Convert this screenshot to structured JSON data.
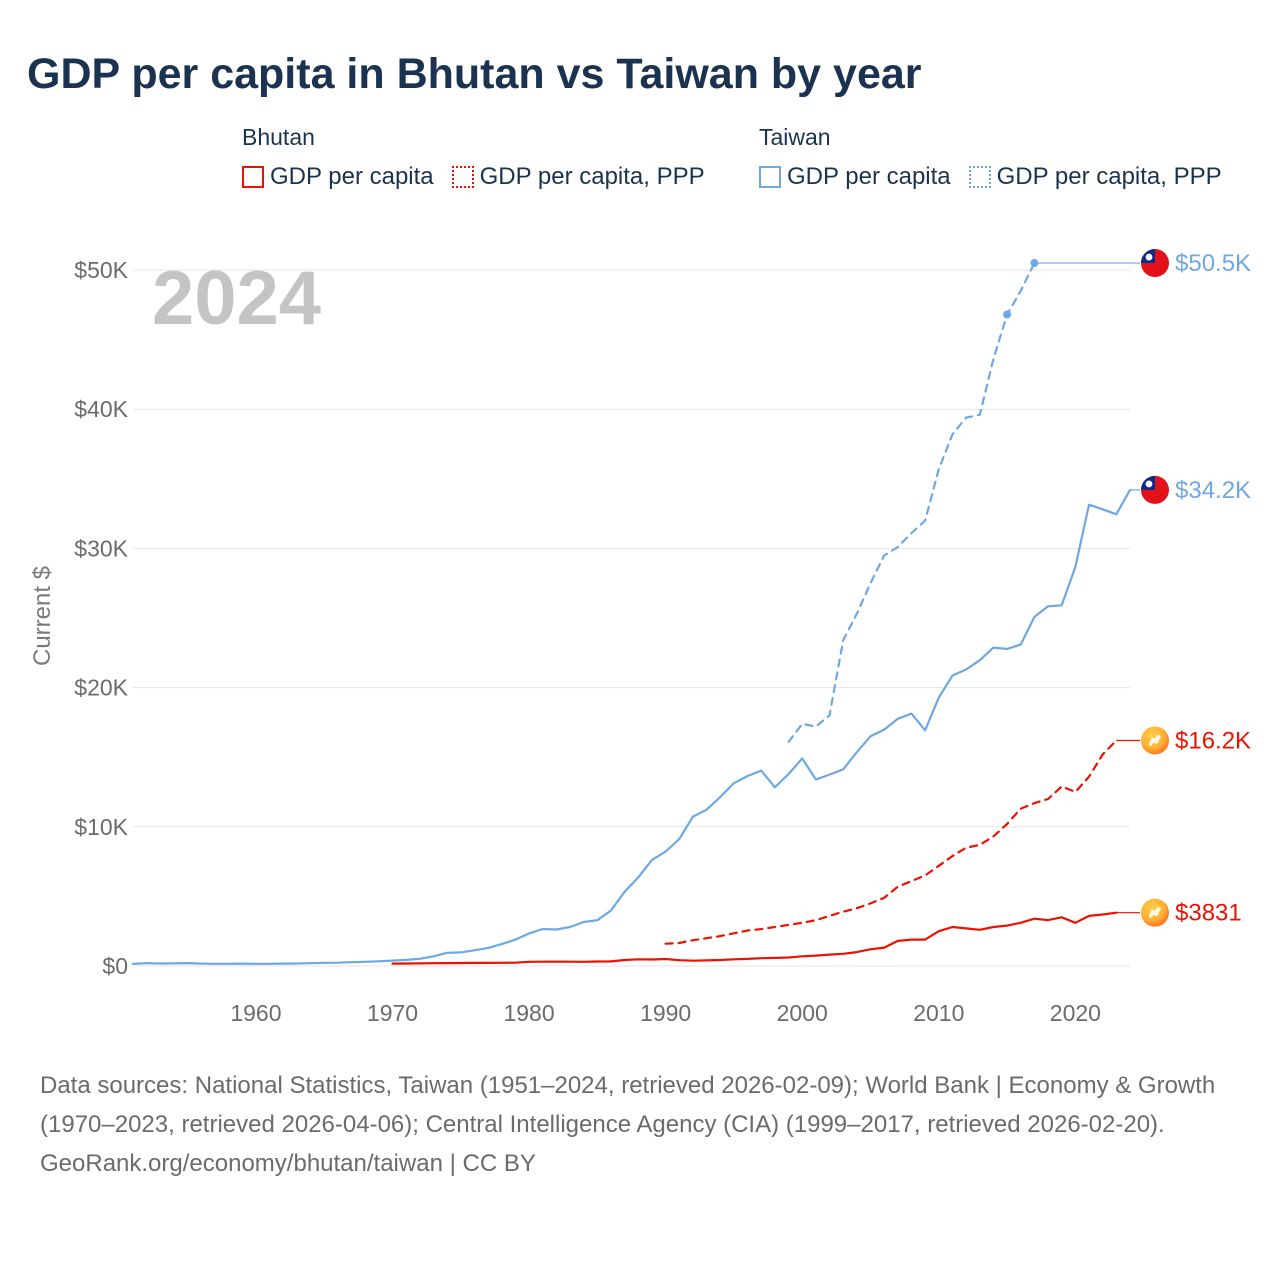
{
  "title": "GDP per capita in Bhutan vs Taiwan by year",
  "legend": {
    "groups": [
      {
        "heading": "Bhutan",
        "color": "#ee1100",
        "items": [
          {
            "label": "GDP per capita",
            "style": "solid"
          },
          {
            "label": "GDP per capita, PPP",
            "style": "dotted"
          }
        ]
      },
      {
        "heading": "Taiwan",
        "color": "#6ea8e2",
        "items": [
          {
            "label": "GDP per capita",
            "style": "solid"
          },
          {
            "label": "GDP per capita, PPP",
            "style": "dotted"
          }
        ]
      }
    ]
  },
  "year_label": "2024",
  "chart_data": {
    "type": "line",
    "title": "GDP per capita in Bhutan vs Taiwan by year",
    "xlabel": "",
    "ylabel": "Current $",
    "xlim": [
      1951,
      2024
    ],
    "ylim": [
      0,
      50000
    ],
    "x_ticks": [
      1960,
      1970,
      1980,
      1990,
      2000,
      2010,
      2020
    ],
    "x_tick_labels": [
      "1960",
      "1970",
      "1980",
      "1990",
      "2000",
      "2010",
      "2020"
    ],
    "y_ticks": [
      0,
      10000,
      20000,
      30000,
      40000,
      50000
    ],
    "y_tick_labels": [
      "$0",
      "$10K",
      "$20K",
      "$30K",
      "$40K",
      "$50K"
    ],
    "grid": true,
    "series": [
      {
        "name": "Taiwan GDP per capita, PPP",
        "country": "Taiwan",
        "color": "#6ea8e2",
        "dash": "dashed",
        "end_label": "$50.5K",
        "end_value": 50500,
        "x": [
          1999,
          2000,
          2001,
          2002,
          2003,
          2004,
          2005,
          2006,
          2007,
          2008,
          2009,
          2010,
          2011,
          2012,
          2013,
          2014,
          2015,
          2016,
          2017
        ],
        "values": [
          16100,
          17400,
          17200,
          18000,
          23400,
          25300,
          27500,
          29500,
          30100,
          31100,
          32000,
          35700,
          38200,
          39400,
          39600,
          43600,
          46800,
          48500,
          50500
        ],
        "markers": [
          2015,
          2017
        ]
      },
      {
        "name": "Taiwan GDP per capita",
        "country": "Taiwan",
        "color": "#6ea8e2",
        "dash": "solid",
        "end_label": "$34.2K",
        "end_value": 34200,
        "x": [
          1951,
          1952,
          1953,
          1954,
          1955,
          1956,
          1957,
          1958,
          1959,
          1960,
          1961,
          1962,
          1963,
          1964,
          1965,
          1966,
          1967,
          1968,
          1969,
          1970,
          1971,
          1972,
          1973,
          1974,
          1975,
          1976,
          1977,
          1978,
          1979,
          1980,
          1981,
          1982,
          1983,
          1984,
          1985,
          1986,
          1987,
          1988,
          1989,
          1990,
          1991,
          1992,
          1993,
          1994,
          1995,
          1996,
          1997,
          1998,
          1999,
          2000,
          2001,
          2002,
          2003,
          2004,
          2005,
          2006,
          2007,
          2008,
          2009,
          2010,
          2011,
          2012,
          2013,
          2014,
          2015,
          2016,
          2017,
          2018,
          2019,
          2020,
          2021,
          2022,
          2023,
          2024
        ],
        "values": [
          150,
          200,
          180,
          190,
          210,
          170,
          160,
          160,
          170,
          150,
          160,
          170,
          180,
          200,
          220,
          240,
          270,
          300,
          340,
          390,
          440,
          520,
          700,
          950,
          980,
          1130,
          1300,
          1570,
          1900,
          2340,
          2660,
          2620,
          2800,
          3160,
          3290,
          3990,
          5340,
          6370,
          7620,
          8220,
          9120,
          10730,
          11230,
          12150,
          13130,
          13650,
          14040,
          12840,
          13790,
          14910,
          13400,
          13750,
          14120,
          15360,
          16500,
          16980,
          17760,
          18130,
          16930,
          19280,
          20870,
          21300,
          21970,
          22870,
          22780,
          23090,
          25080,
          25840,
          25910,
          28680,
          33140,
          32810,
          32450,
          34200
        ]
      },
      {
        "name": "Bhutan GDP per capita, PPP",
        "country": "Bhutan",
        "color": "#ee1100",
        "dash": "dashed",
        "end_label": "$16.2K",
        "end_value": 16200,
        "x": [
          1990,
          1991,
          1992,
          1993,
          1994,
          1995,
          1996,
          1997,
          1998,
          1999,
          2000,
          2001,
          2002,
          2003,
          2004,
          2005,
          2006,
          2007,
          2008,
          2009,
          2010,
          2011,
          2012,
          2013,
          2014,
          2015,
          2016,
          2017,
          2018,
          2019,
          2020,
          2021,
          2022,
          2023
        ],
        "values": [
          1600,
          1650,
          1850,
          2000,
          2150,
          2350,
          2550,
          2650,
          2800,
          2950,
          3100,
          3300,
          3600,
          3900,
          4150,
          4500,
          4900,
          5700,
          6100,
          6500,
          7200,
          7900,
          8500,
          8700,
          9300,
          10200,
          11300,
          11700,
          12000,
          12900,
          12500,
          13600,
          15200,
          16200
        ]
      },
      {
        "name": "Bhutan GDP per capita",
        "country": "Bhutan",
        "color": "#ee1100",
        "dash": "solid",
        "end_label": "$3831",
        "end_value": 3831,
        "x": [
          1970,
          1971,
          1972,
          1973,
          1974,
          1975,
          1976,
          1977,
          1978,
          1979,
          1980,
          1981,
          1982,
          1983,
          1984,
          1985,
          1986,
          1987,
          1988,
          1989,
          1990,
          1991,
          1992,
          1993,
          1994,
          1995,
          1996,
          1997,
          1998,
          1999,
          2000,
          2001,
          2002,
          2003,
          2004,
          2005,
          2006,
          2007,
          2008,
          2009,
          2010,
          2011,
          2012,
          2013,
          2014,
          2015,
          2016,
          2017,
          2018,
          2019,
          2020,
          2021,
          2022,
          2023
        ],
        "values": [
          170,
          180,
          190,
          200,
          210,
          215,
          220,
          220,
          230,
          240,
          300,
          310,
          310,
          310,
          300,
          320,
          330,
          430,
          480,
          470,
          500,
          420,
          380,
          400,
          430,
          480,
          510,
          560,
          580,
          610,
          700,
          750,
          820,
          880,
          1000,
          1200,
          1320,
          1800,
          1900,
          1900,
          2500,
          2800,
          2700,
          2600,
          2800,
          2900,
          3100,
          3400,
          3300,
          3500,
          3100,
          3600,
          3700,
          3831
        ]
      }
    ]
  },
  "footer": {
    "sources": "Data sources: National Statistics, Taiwan (1951–2024, retrieved 2026-02-09); World Bank | Economy & Growth (1970–2023, retrieved 2026-04-06); Central Intelligence Agency (CIA) (1999–2017, retrieved 2026-02-20).",
    "credit": "GeoRank.org/economy/bhutan/taiwan | CC BY"
  }
}
